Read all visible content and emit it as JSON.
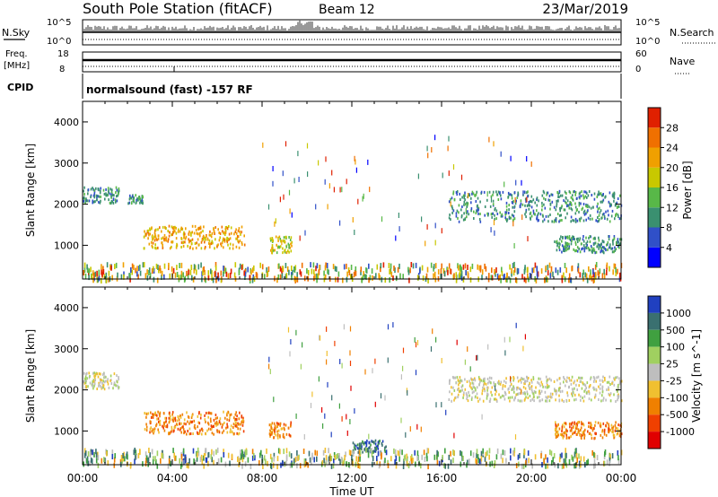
{
  "header": {
    "station": "South Pole Station (fitACF)",
    "beam": "Beam 12",
    "date": "23/Mar/2019"
  },
  "status_panels": {
    "nsky_label": "N.Sky",
    "nsky_ticks": [
      "10^5",
      "10^0"
    ],
    "nsearch_label": "N.Search",
    "nsearch_ticks": [
      "10^5",
      "10^0"
    ],
    "freq_label_1": "Freq.",
    "freq_label_2": "[MHz]",
    "freq_ticks": [
      "18",
      "8"
    ],
    "nave_label": "Nave",
    "nave_ticks": [
      "60",
      "0"
    ],
    "cpid_label": "CPID",
    "cpid_text": "normalsound (fast) -157 RF"
  },
  "chart_data": [
    {
      "type": "heatmap",
      "name": "power-panel",
      "ylabel": "Slant Range [km]",
      "y_ticks": [
        "1000",
        "2000",
        "3000",
        "4000"
      ],
      "ylim": [
        180,
        4500
      ],
      "xlim": [
        0,
        24
      ],
      "colorbar_label": "Power [dB]",
      "colorbar_ticks": [
        "4",
        "8",
        "12",
        "16",
        "20",
        "24",
        "28"
      ],
      "colorbar_colors": [
        "#0000ff",
        "#3050c8",
        "#3a9070",
        "#58b848",
        "#c8c800",
        "#f0a000",
        "#f07000",
        "#e02000"
      ],
      "scatter_regions": [
        {
          "t": [
            0.0,
            1.6
          ],
          "r": [
            2050,
            2450
          ],
          "level": 2
        },
        {
          "t": [
            2.0,
            2.7
          ],
          "r": [
            2050,
            2250
          ],
          "level": 2
        },
        {
          "t": [
            2.7,
            7.2
          ],
          "r": [
            950,
            1500
          ],
          "level": 5
        },
        {
          "t": [
            8.3,
            9.3
          ],
          "r": [
            850,
            1250
          ],
          "level": 4
        },
        {
          "t": [
            16.3,
            24.0
          ],
          "r": [
            1600,
            2350
          ],
          "level": 2
        },
        {
          "t": [
            21.0,
            24.0
          ],
          "r": [
            850,
            1250
          ],
          "level": 2
        },
        {
          "t": [
            0.0,
            24.0
          ],
          "r": [
            200,
            600
          ],
          "level": 4
        }
      ]
    },
    {
      "type": "heatmap",
      "name": "velocity-panel",
      "ylabel": "Slant Range [km]",
      "y_ticks": [
        "1000",
        "2000",
        "3000",
        "4000"
      ],
      "ylim": [
        180,
        4500
      ],
      "xlim": [
        0,
        24
      ],
      "colorbar_label": "Velocity [m s^-1]",
      "colorbar_ticks": [
        "1000",
        "500",
        "100",
        "25",
        "-25",
        "-100",
        "-500",
        "-1000"
      ],
      "colorbar_colors": [
        "#2040c0",
        "#3a7070",
        "#40a040",
        "#a0d060",
        "#bebebe",
        "#f0c030",
        "#f08000",
        "#f04000",
        "#e00000"
      ],
      "scatter_regions": [
        {
          "t": [
            0.0,
            1.6
          ],
          "r": [
            2050,
            2450
          ],
          "level": 4
        },
        {
          "t": [
            2.7,
            7.2
          ],
          "r": [
            950,
            1500
          ],
          "level": 6
        },
        {
          "t": [
            8.3,
            9.3
          ],
          "r": [
            850,
            1250
          ],
          "level": 6
        },
        {
          "t": [
            12.0,
            13.5
          ],
          "r": [
            500,
            800
          ],
          "level": 1
        },
        {
          "t": [
            16.3,
            24.0
          ],
          "r": [
            1750,
            2350
          ],
          "level": 4
        },
        {
          "t": [
            21.0,
            24.0
          ],
          "r": [
            850,
            1250
          ],
          "level": 6
        },
        {
          "t": [
            0.0,
            24.0
          ],
          "r": [
            200,
            600
          ],
          "level": 3
        }
      ]
    }
  ],
  "x_axis": {
    "ticks": [
      "00:00",
      "04:00",
      "08:00",
      "12:00",
      "16:00",
      "20:00",
      "00:00"
    ],
    "label": "Time UT"
  }
}
